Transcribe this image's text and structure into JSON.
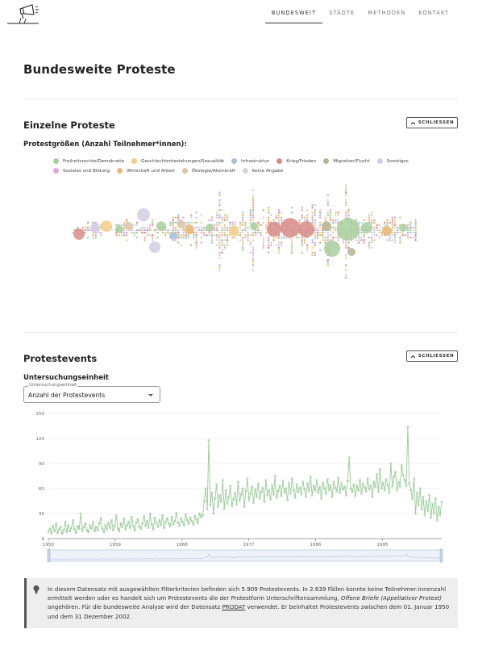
{
  "nav": {
    "items": [
      {
        "label": "BUNDESWEIT",
        "active": true
      },
      {
        "label": "STÄDTE",
        "active": false
      },
      {
        "label": "METHODEN",
        "active": false
      },
      {
        "label": "KONTAKT",
        "active": false
      }
    ]
  },
  "page": {
    "title": "Bundesweite Proteste"
  },
  "section_single": {
    "title": "Einzelne Proteste",
    "close_label": "SCHLIESSEN",
    "subtitle": "Protestgrößen (Anzahl Teilnehmer*innen):"
  },
  "legend": [
    {
      "label": "Freiheitsrechte/Demokratie",
      "color": "#a9cfa0"
    },
    {
      "label": "Geschlechterbeziehungen/Sexualität",
      "color": "#f3cf86"
    },
    {
      "label": "Infrastruktur",
      "color": "#a9c0d9"
    },
    {
      "label": "Krieg/Frieden",
      "color": "#d98c8c"
    },
    {
      "label": "Migration/Flucht",
      "color": "#b7b393"
    },
    {
      "label": "Sonstiges",
      "color": "#d2cde2"
    },
    {
      "label": "Soziales und Bildung",
      "color": "#e0a7d9"
    },
    {
      "label": "Wirtschaft und Arbeit",
      "color": "#e9b77a"
    },
    {
      "label": "Ökologie/Atomkraft",
      "color": "#dcc7a6"
    },
    {
      "label": "Keine Angabe",
      "color": "#d5d5d5"
    }
  ],
  "section_events": {
    "title": "Protestevents",
    "close_label": "SCHLIESSEN",
    "subtitle": "Untersuchungseinheit"
  },
  "select": {
    "label": "Untersuchungseinheit",
    "value": "Anzahl der Protestevents"
  },
  "chart_data": {
    "type": "line",
    "y_ticks": [
      "150",
      "120",
      "90",
      "60",
      "30",
      "0"
    ],
    "x_ticks": [
      "1950",
      "1959",
      "1968",
      "1977",
      "1986",
      "1995"
    ],
    "ylim": [
      0,
      150
    ],
    "xlim": [
      1950,
      2003
    ],
    "color": "#9cc99a",
    "grid": true,
    "series": [
      {
        "values": [
          8,
          12,
          6,
          15,
          9,
          18,
          7,
          11,
          14,
          6,
          10,
          20,
          8,
          16,
          9,
          13,
          22,
          11,
          7,
          15,
          12,
          30,
          9,
          14,
          18,
          10,
          8,
          16,
          12,
          20,
          9,
          14,
          10,
          18,
          25,
          12,
          8,
          16,
          11,
          19,
          13,
          22,
          10,
          15,
          28,
          12,
          9,
          18,
          14,
          24,
          11,
          16,
          20,
          13,
          26,
          15,
          10,
          19,
          23,
          14,
          12,
          18,
          27,
          15,
          21,
          13,
          30,
          17,
          11,
          25,
          19,
          14,
          22,
          16,
          28,
          13,
          20,
          24,
          18,
          15,
          26,
          17,
          21,
          31,
          19,
          15,
          24,
          20,
          16,
          29,
          22,
          18,
          25,
          21,
          17,
          27,
          23,
          19,
          30,
          26,
          28,
          45,
          60,
          35,
          118,
          40,
          55,
          30,
          48,
          65,
          38,
          52,
          44,
          70,
          36,
          58,
          42,
          50,
          63,
          39,
          47,
          55,
          41,
          68,
          45,
          53,
          60,
          38,
          57,
          72,
          46,
          54,
          62,
          43,
          59,
          50,
          66,
          48,
          56,
          61,
          44,
          70,
          52,
          58,
          47,
          64,
          53,
          75,
          49,
          57,
          63,
          51,
          69,
          55,
          60,
          46,
          67,
          54,
          72,
          58,
          49,
          65,
          56,
          61,
          53,
          68,
          59,
          50,
          66,
          57,
          74,
          52,
          63,
          58,
          70,
          55,
          62,
          48,
          67,
          60,
          54,
          71,
          58,
          64,
          50,
          68,
          61,
          57,
          73,
          55,
          66,
          59,
          62,
          52,
          69,
          97,
          60,
          56,
          65,
          51,
          63,
          58,
          70,
          54,
          66,
          61,
          57,
          72,
          59,
          64,
          50,
          68,
          62,
          77,
          56,
          83,
          60,
          67,
          58,
          71,
          64,
          55,
          90,
          62,
          74,
          80,
          58,
          68,
          62,
          88,
          76,
          70,
          63,
          134,
          66,
          58,
          48,
          72,
          30,
          55,
          40,
          60,
          35,
          50,
          28,
          45,
          33,
          52,
          25,
          42,
          30,
          48,
          22,
          38,
          28,
          44
        ]
      }
    ]
  },
  "note": {
    "text_1": "In diesem Datensatz mit ausgewählten Filterkriterien befinden sich 5.909 Protestevents. In 2.639 Fällen konnte keine Teilnehmer:innenzahl ermittelt werden oder es handelt sich um Protestevents die der Protestform Unterschriftensammlung, ",
    "text_italic": "Offene Briefe (Appellativer Protest)",
    "text_2": " angehören. Für die bundesweite Analyse wird der Datensatz ",
    "link": "PRODAT",
    "text_3": " verwendet. Er beinhaltet Protestevents zwischen dem 01. Januar 1950 und dem 31 Dezember 2002."
  }
}
